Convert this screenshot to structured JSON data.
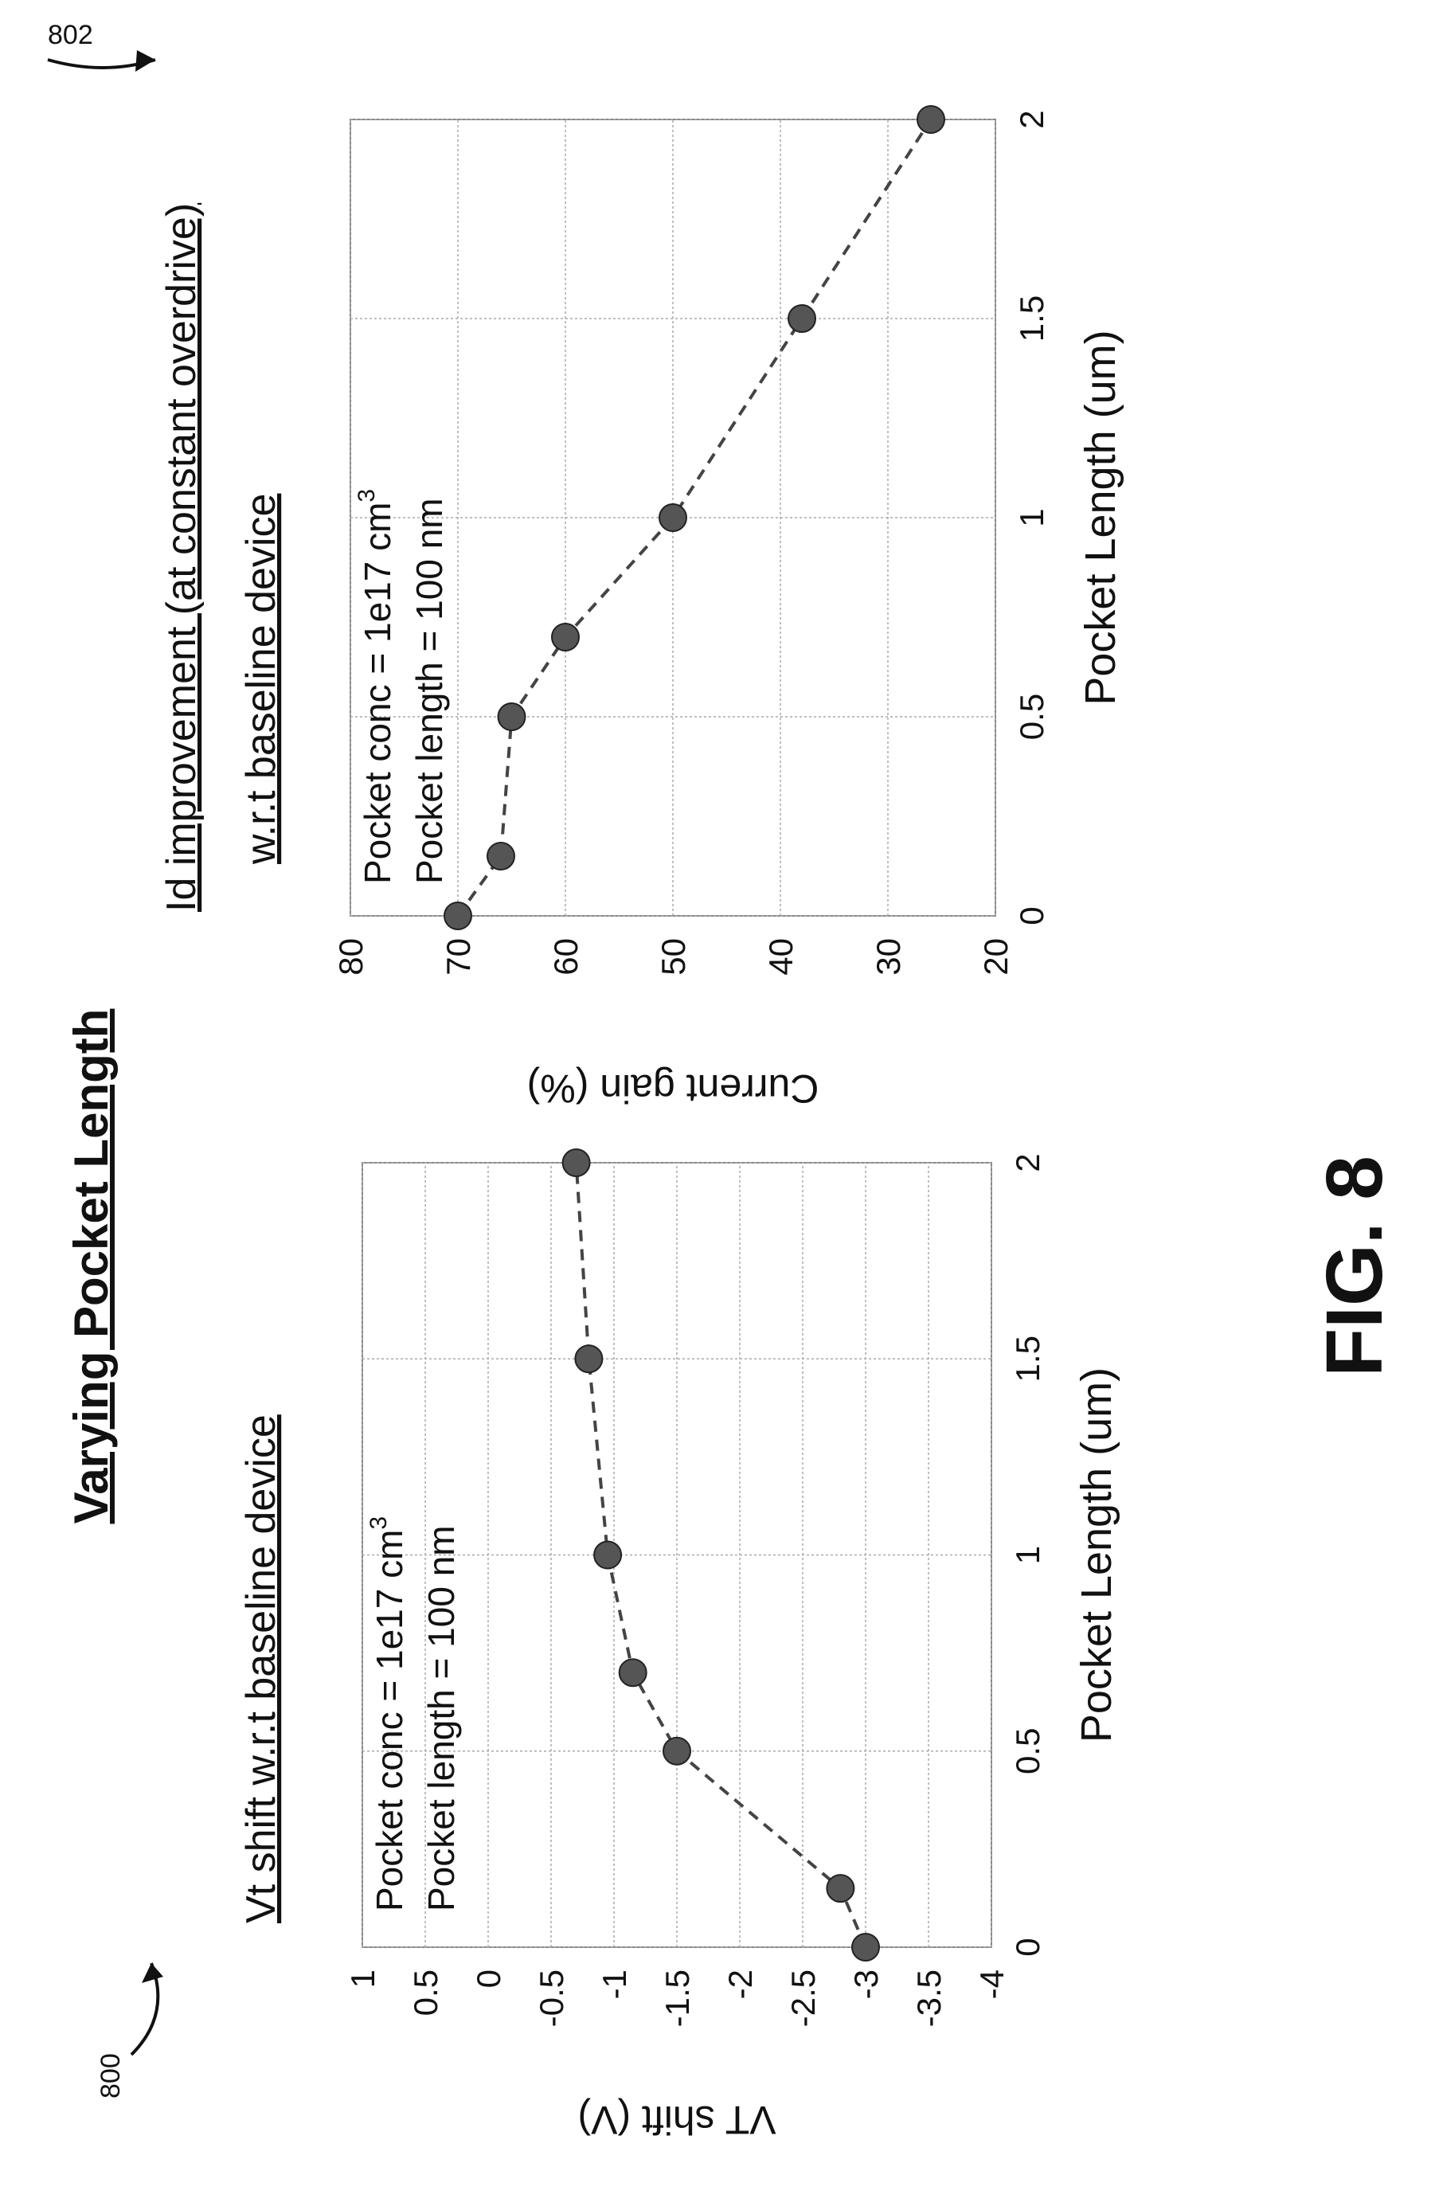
{
  "figure": {
    "title": "Varying Pocket Length",
    "label": "FIG. 8",
    "ref_left": "800",
    "ref_right": "802"
  },
  "chart_data": [
    {
      "type": "scatter",
      "title": "Vt shift w.r.t baseline device",
      "xlabel": "Pocket Length (um)",
      "ylabel": "VT shift (V)",
      "xlim": [
        0,
        2
      ],
      "ylim": [
        -4,
        1
      ],
      "xticks": [
        "0",
        "0.5",
        "1",
        "1.5",
        "2"
      ],
      "yticks": [
        "1",
        "0.5",
        "0",
        "-0.5",
        "-1",
        "-1.5",
        "-2",
        "-2.5",
        "-3",
        "-3.5",
        "-4"
      ],
      "x": [
        0,
        0.15,
        0.5,
        0.7,
        1,
        1.5,
        2
      ],
      "y": [
        -3,
        -2.8,
        -1.5,
        -1.15,
        -0.95,
        -0.8,
        -0.7
      ],
      "annotation": [
        "Pocket conc = 1e17 cm",
        "3",
        "Pocket length = 100 nm"
      ],
      "line_style": "dashed",
      "grid": true,
      "marker_color": "#555555"
    },
    {
      "type": "scatter",
      "title": "Id improvement (at constant overdrive)",
      "title_line2": "w.r.t baseline device",
      "xlabel": "Pocket Length (um)",
      "ylabel": "Current gain (%)",
      "xlim": [
        0,
        2
      ],
      "ylim": [
        20,
        80
      ],
      "xticks": [
        "0",
        "0.5",
        "1",
        "1.5",
        "2"
      ],
      "yticks": [
        "80",
        "70",
        "60",
        "50",
        "40",
        "30",
        "20"
      ],
      "x": [
        0,
        0.15,
        0.5,
        0.7,
        1,
        1.5,
        2
      ],
      "y": [
        70,
        66,
        65,
        60,
        50,
        38,
        26
      ],
      "annotation": [
        "Pocket conc = 1e17 cm",
        "3",
        "Pocket length = 100 nm"
      ],
      "line_style": "dashed",
      "grid": true,
      "marker_color": "#555555"
    }
  ]
}
